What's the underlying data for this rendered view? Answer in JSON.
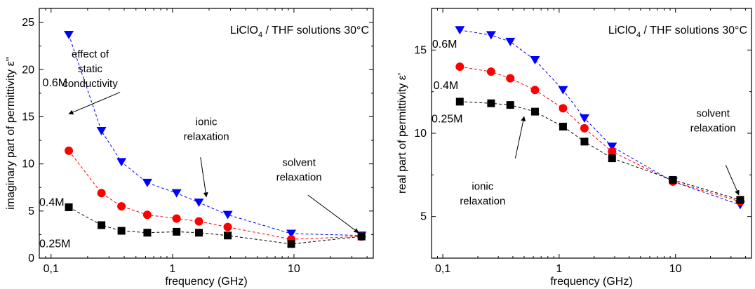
{
  "chart_data": [
    {
      "type": "scatter",
      "title": "LiClO4 / THF solutions 30°C",
      "title_main": "LiClO",
      "title_sub": "4",
      "title_rest": " / THF solutions 30°C",
      "xlabel": "frequency (GHz)",
      "ylabel": "imaginary part of permittivity ε''",
      "xscale": "log",
      "xlim": [
        0.08,
        45
      ],
      "ylim": [
        0,
        26.5
      ],
      "xticks": [
        {
          "v": 0.1,
          "label": "0,1"
        },
        {
          "v": 1,
          "label": "1"
        },
        {
          "v": 10,
          "label": "10"
        }
      ],
      "yticks": [
        0,
        5,
        10,
        15,
        20,
        25
      ],
      "x": [
        0.14,
        0.26,
        0.38,
        0.62,
        1.08,
        1.65,
        2.85,
        9.5,
        36
      ],
      "series": [
        {
          "name": "0.6M",
          "marker": "triangle-down",
          "color": "#0000ff",
          "values": [
            23.7,
            13.5,
            10.2,
            8.0,
            6.9,
            5.9,
            4.6,
            2.6,
            2.4
          ]
        },
        {
          "name": "0.4M",
          "marker": "circle",
          "color": "#ff0000",
          "values": [
            11.4,
            6.9,
            5.5,
            4.6,
            4.2,
            3.9,
            3.3,
            2.0,
            2.3
          ]
        },
        {
          "name": "0.25M",
          "marker": "square",
          "color": "#000000",
          "values": [
            5.4,
            3.5,
            2.9,
            2.7,
            2.8,
            2.7,
            2.4,
            1.5,
            2.3
          ]
        }
      ],
      "series_labels": [
        {
          "text": "0.6M",
          "x": 0.085,
          "y": 18.7
        },
        {
          "text": "0.4M",
          "x": 0.08,
          "y": 6.0
        },
        {
          "text": "0.25M",
          "x": 0.08,
          "y": 1.6
        }
      ],
      "annotations": [
        {
          "lines": [
            "effect of",
            "static",
            "conductivity"
          ],
          "x": 0.21,
          "y": 21.3,
          "arrow_from": [
            0.37,
            17.6
          ],
          "arrow_to": [
            0.14,
            15.3
          ]
        },
        {
          "lines": [
            "ionic",
            "relaxation"
          ],
          "x": 1.9,
          "y": 14.1,
          "arrow_from": [
            1.7,
            10.7
          ],
          "arrow_to": [
            1.9,
            6.5
          ]
        },
        {
          "lines": [
            "solvent",
            "relaxation"
          ],
          "x": 11,
          "y": 9.8,
          "arrow_from": [
            13,
            6.7
          ],
          "arrow_to": [
            34,
            2.7
          ]
        }
      ]
    },
    {
      "type": "scatter",
      "title": "LiClO4 / THF solutions 30°C",
      "title_main": "LiClO",
      "title_sub": "4",
      "title_rest": " / THF solutions 30°C",
      "xlabel": "frequency (GHz)",
      "ylabel": "real part of permittivity ε'",
      "xscale": "log",
      "xlim": [
        0.08,
        45
      ],
      "ylim": [
        2.5,
        17.5
      ],
      "xticks": [
        {
          "v": 0.1,
          "label": "0,1"
        },
        {
          "v": 1,
          "label": "1"
        },
        {
          "v": 10,
          "label": "10"
        }
      ],
      "yticks": [
        5,
        10,
        15
      ],
      "x": [
        0.14,
        0.26,
        0.38,
        0.62,
        1.08,
        1.65,
        2.85,
        9.5,
        36
      ],
      "series": [
        {
          "name": "0.6M",
          "marker": "triangle-down",
          "color": "#0000ff",
          "values": [
            16.2,
            15.9,
            15.5,
            14.4,
            12.6,
            10.9,
            9.2,
            7.1,
            5.7
          ]
        },
        {
          "name": "0.4M",
          "marker": "circle",
          "color": "#ff0000",
          "values": [
            14.0,
            13.7,
            13.3,
            12.6,
            11.5,
            10.3,
            8.9,
            7.1,
            5.9
          ]
        },
        {
          "name": "0.25M",
          "marker": "square",
          "color": "#000000",
          "values": [
            11.9,
            11.8,
            11.7,
            11.3,
            10.4,
            9.5,
            8.5,
            7.2,
            6.0
          ]
        }
      ],
      "series_labels": [
        {
          "text": "0.6M",
          "x": 0.081,
          "y": 15.4
        },
        {
          "text": "0.4M",
          "x": 0.083,
          "y": 12.9
        },
        {
          "text": "0.25M",
          "x": 0.08,
          "y": 10.9
        }
      ],
      "annotations": [
        {
          "lines": [
            "ionic",
            "relaxation"
          ],
          "x": 0.22,
          "y": 6.6,
          "arrow_from": [
            0.42,
            8.5
          ],
          "arrow_to": [
            0.5,
            11.0
          ]
        },
        {
          "lines": [
            "solvent",
            "relaxation"
          ],
          "x": 21,
          "y": 11.0,
          "arrow_from": [
            27,
            8.1
          ],
          "arrow_to": [
            35,
            6.3
          ]
        }
      ]
    }
  ]
}
